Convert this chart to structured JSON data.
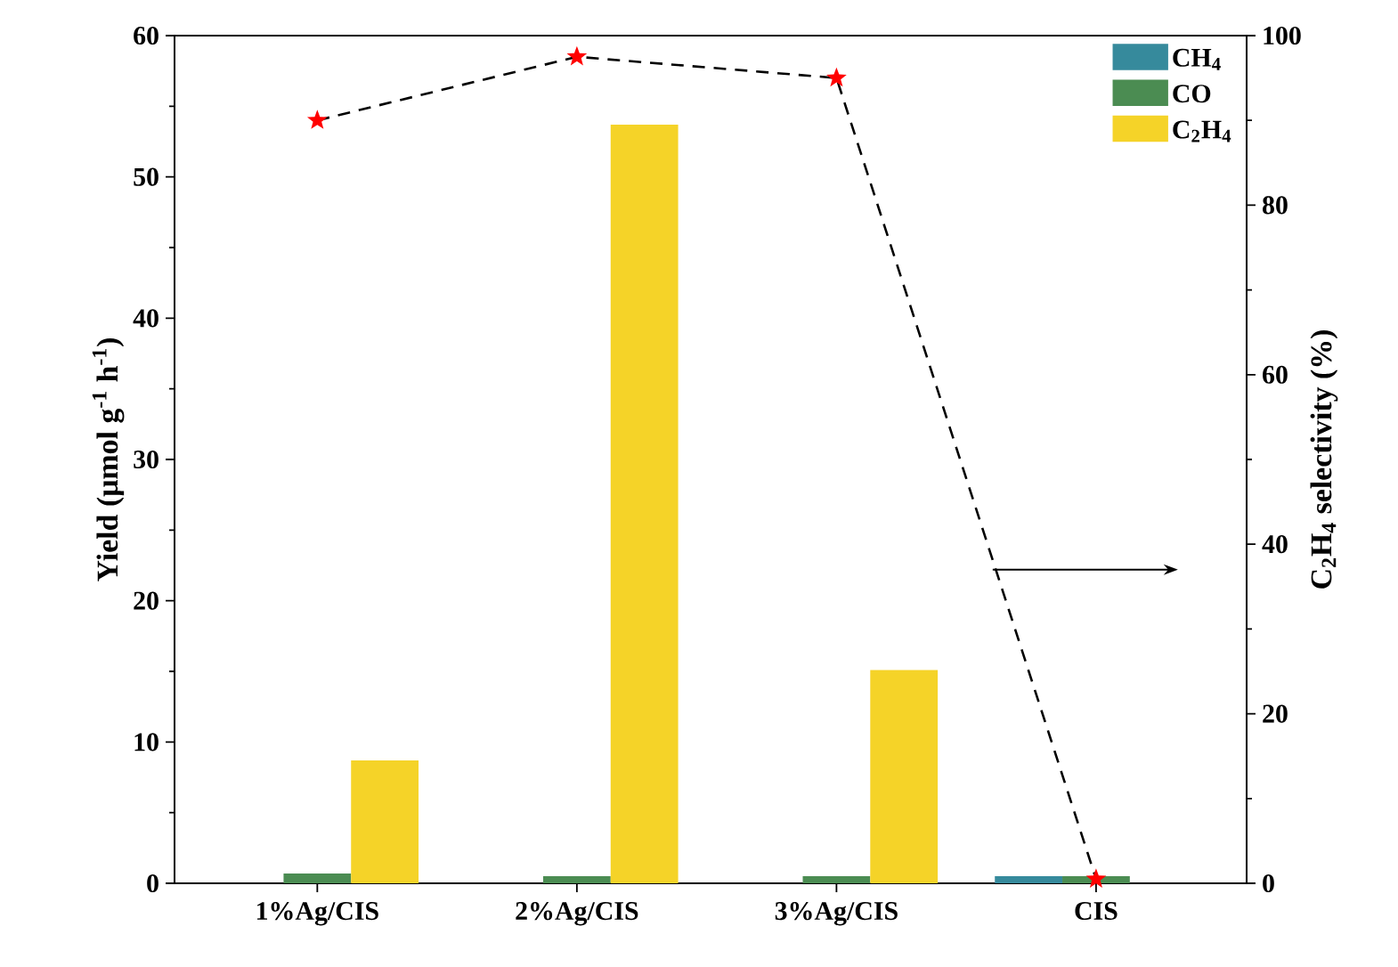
{
  "chart_data": {
    "type": "bar",
    "ylabel": "Yield (μmol g$^{-1}$ h$^{-1}$)",
    "y2label": "C$_{2}$H$_{4}$ selectivity (%)",
    "categories": [
      "1%Ag/CIS",
      "2%Ag/CIS",
      "3%Ag/CIS",
      "CIS"
    ],
    "series": [
      {
        "name": "CH$_{4}$",
        "color": "#368a9c",
        "values": [
          0,
          0,
          0,
          0.5
        ]
      },
      {
        "name": "CO",
        "color": "#4b8c52",
        "values": [
          0.7,
          0.5,
          0.5,
          0.5
        ]
      },
      {
        "name": "C$_{2}$H$_{4}$",
        "color": "#f5d328",
        "values": [
          8.7,
          53.7,
          15.1,
          0
        ]
      },
      {
        "type": "line",
        "axis": "y2",
        "color": "#ff0000",
        "marker": "star",
        "line_style": "dashed",
        "values": [
          90,
          97.5,
          95,
          0.5
        ]
      }
    ],
    "ylim": [
      0,
      60
    ],
    "yticks": [
      0,
      10,
      20,
      30,
      40,
      50,
      60
    ],
    "y2lim": [
      0,
      100
    ],
    "y2ticks": [
      0,
      20,
      40,
      60,
      80,
      100
    ],
    "legend": "top right"
  }
}
